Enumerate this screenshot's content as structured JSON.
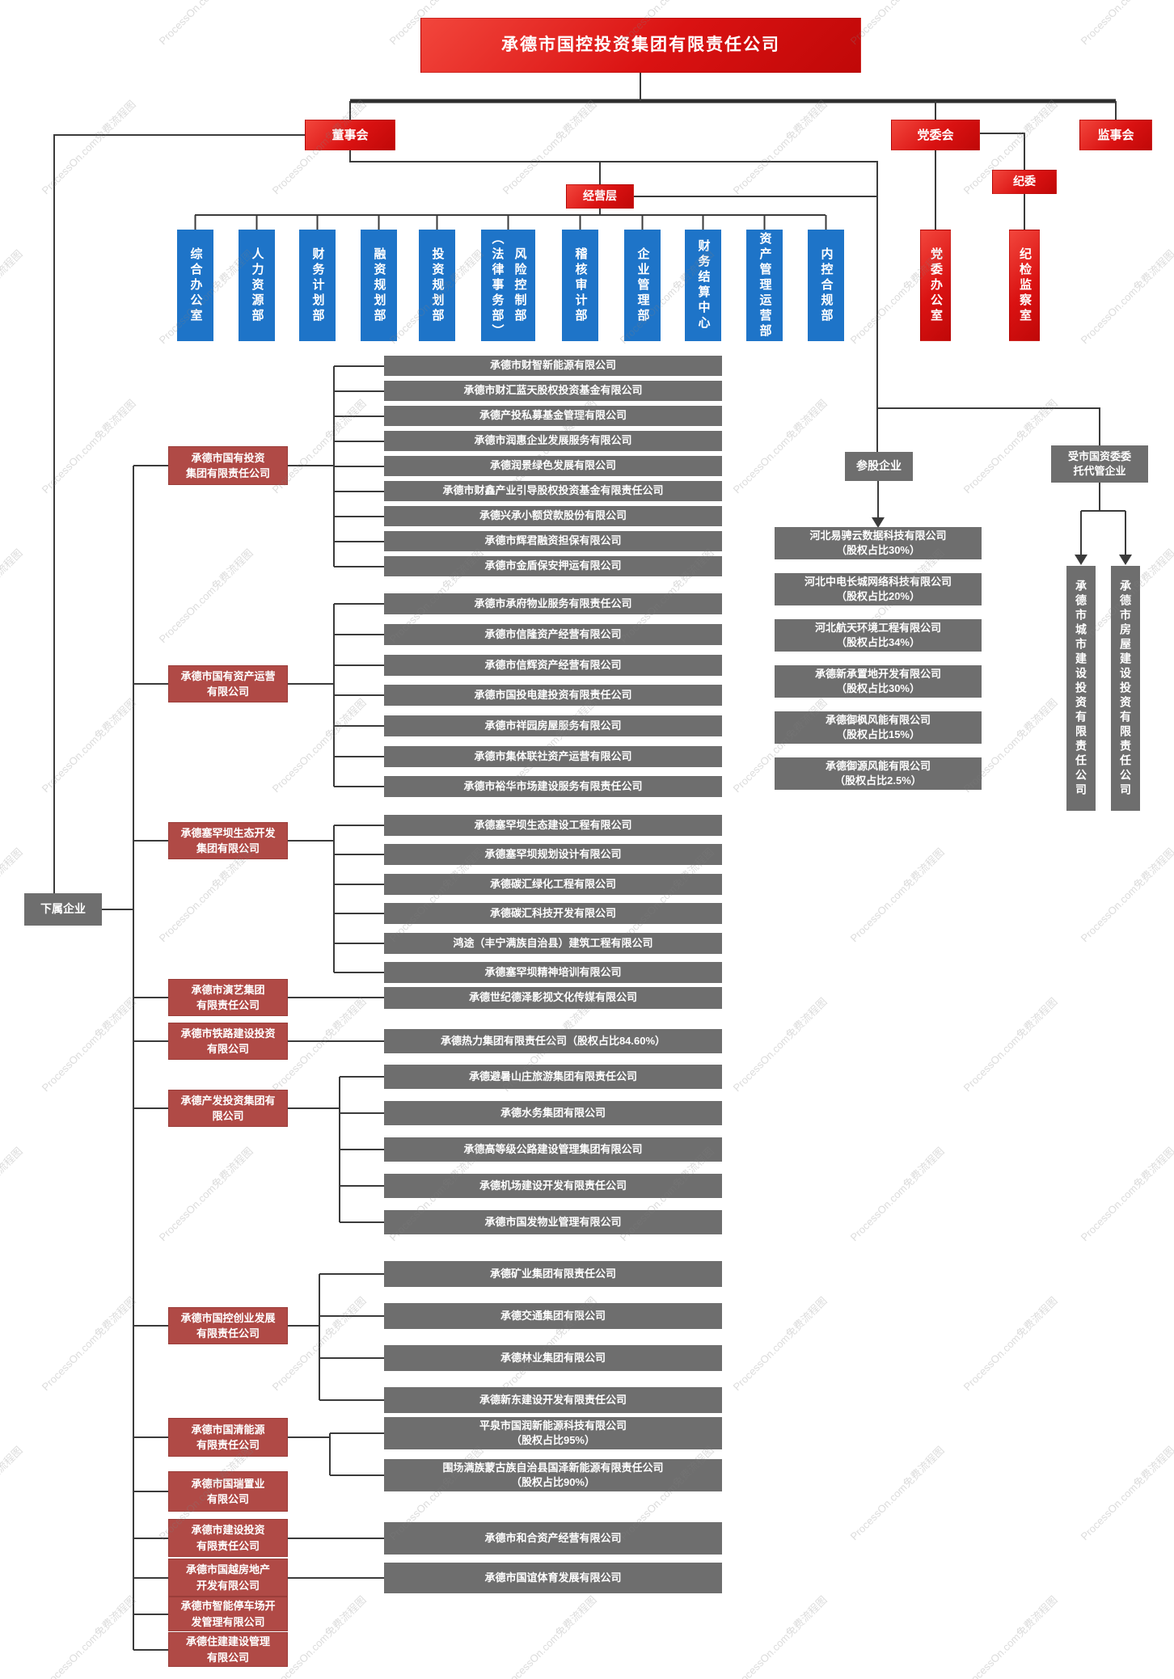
{
  "watermark": {
    "text": "ProcessOn.com免费流程图"
  },
  "root": {
    "label": "承德市国控投资集团有限责任公司"
  },
  "governance": {
    "board": "董事会",
    "party_committee": "党委会",
    "supervisory_board": "监事会",
    "discipline_committee": "纪委",
    "management": "经营层"
  },
  "departments": [
    "综合办公室",
    "人力资源部",
    "财务计划部",
    "融资规划部",
    "投资规划部",
    "风险控制部\n（法律事务部）",
    "稽核审计部",
    "企业管理部",
    "财务结算中心",
    "资产管理运营部",
    "内控合规部"
  ],
  "party_organs": [
    "党委办公室",
    "纪检监察室"
  ],
  "subordinate_label": "下属企业",
  "subsidiaries": [
    {
      "name": "承德市国有投资\n集团有限责任公司",
      "children": [
        "承德市财智新能源有限公司",
        "承德市财汇蓝天股权投资基金有限公司",
        "承德产投私募基金管理有限公司",
        "承德市润惠企业发展服务有限公司",
        "承德润景绿色发展有限公司",
        "承德市财鑫产业引导股权投资基金有限责任公司",
        "承德兴承小额贷款股份有限公司",
        "承德市辉君融资担保有限公司",
        "承德市金盾保安押运有限公司"
      ]
    },
    {
      "name": "承德市国有资产运营\n有限公司",
      "children": [
        "承德市承府物业服务有限责任公司",
        "承德市信隆资产经营有限公司",
        "承德市信辉资产经营有限公司",
        "承德市国投电建投资有限责任公司",
        "承德市祥园房屋服务有限公司",
        "承德市集体联社资产运营有限公司",
        "承德市裕华市场建设服务有限责任公司"
      ]
    },
    {
      "name": "承德塞罕坝生态开发\n集团有限公司",
      "children": [
        "承德塞罕坝生态建设工程有限公司",
        "承德塞罕坝规划设计有限公司",
        "承德碳汇绿化工程有限公司",
        "承德碳汇科技开发有限公司",
        "鸿途（丰宁满族自治县）建筑工程有限公司",
        "承德塞罕坝精神培训有限公司"
      ]
    },
    {
      "name": "承德市演艺集团\n有限责任公司",
      "children": [
        "承德世纪德泽影视文化传媒有限公司"
      ]
    },
    {
      "name": "承德市铁路建设投资\n有限公司",
      "children": [
        "承德热力集团有限责任公司（股权占比84.60%）"
      ]
    },
    {
      "name": "承德产发投资集团有\n限公司",
      "children": [
        "承德避暑山庄旅游集团有限责任公司",
        "承德水务集团有限公司",
        "承德高等级公路建设管理集团有限公司",
        "承德机场建设开发有限责任公司",
        "承德市国发物业管理有限公司"
      ]
    },
    {
      "name": "承德市国控创业发展\n有限责任公司",
      "children": [
        "承德矿业集团有限责任公司",
        "承德交通集团有限公司",
        "承德林业集团有限公司",
        "承德新东建设开发有限责任公司"
      ]
    },
    {
      "name": "承德市国清能源\n有限责任公司",
      "children": [
        "平泉市国润新能源科技有限公司\n（股权占比95%）",
        "围场满族蒙古族自治县国泽新能源有限责任公司\n（股权占比90%）"
      ]
    },
    {
      "name": "承德市国瑞置业\n有限公司",
      "children": []
    },
    {
      "name": "承德市建设投资\n有限责任公司",
      "children": [
        "承德市和合资产经营有限公司"
      ]
    },
    {
      "name": "承德市国越房地产\n开发有限公司",
      "children": [
        "承德市国谊体育发展有限公司"
      ]
    },
    {
      "name": "承德市智能停车场开\n发管理有限公司",
      "children": []
    },
    {
      "name": "承德住建建设管理\n有限公司",
      "children": []
    }
  ],
  "affiliates": {
    "label": "参股企业",
    "items": [
      "河北易骋云数据科技有限公司\n（股权占比30%）",
      "河北中电长城网络科技有限公司\n（股权占比20%）",
      "河北航天环境工程有限公司\n（股权占比34%）",
      "承德新承置地开发有限公司\n（股权占比30%）",
      "承德御枫风能有限公司\n（股权占比15%）",
      "承德御源风能有限公司\n（股权占比2.5%）"
    ]
  },
  "entrusted": {
    "label": "受市国资委委\n托代管企业",
    "companies": [
      "承德市城市建设投资有限责任公司",
      "承德市房屋建设投资有限责任公司"
    ]
  },
  "colors": {
    "top_red": "#d21010",
    "brick_red": "#b04a46",
    "department_blue": "#1e74c8",
    "company_gray": "#6e6e6e",
    "line": "#3b3b3b"
  }
}
